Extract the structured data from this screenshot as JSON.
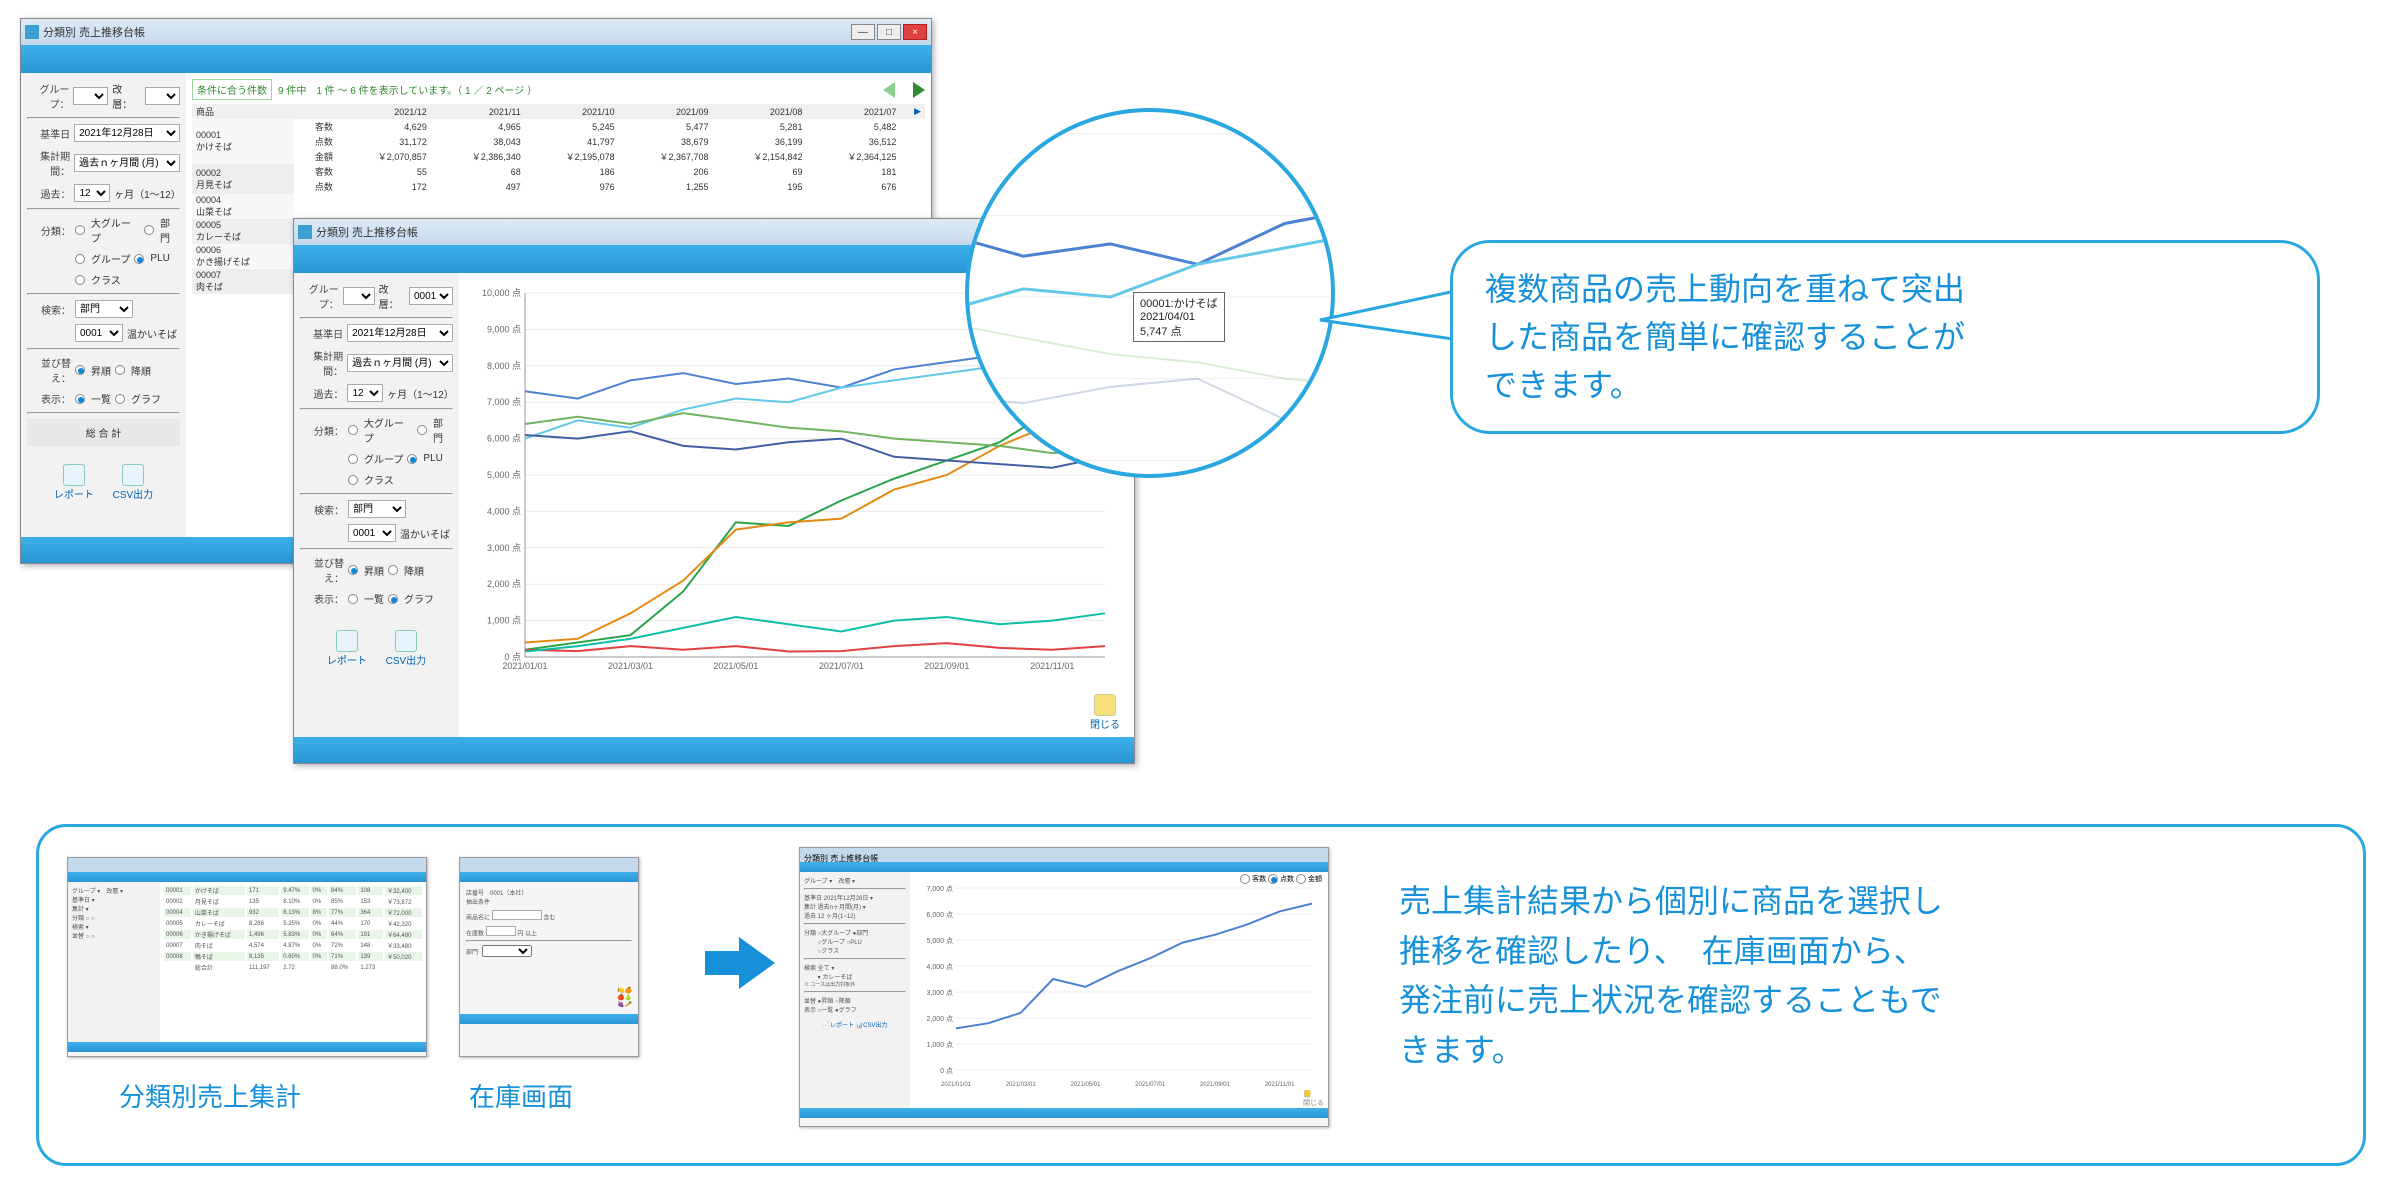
{
  "window_title": "分類別 売上推移台帳",
  "sidebar": {
    "group_lbl": "グループ：",
    "kaisou_lbl": "改層：",
    "kijun_lbl": "基準日",
    "kijun_val": "2021年12月28日",
    "syukei_lbl": "集計期間：",
    "syukei_val": "過去ｎヶ月間 (月)",
    "kako_lbl": "過去：",
    "kako_val": "12",
    "kako_unit": "ヶ月（1～12）",
    "bunrui_lbl": "分類：",
    "opt_large": "大グループ",
    "opt_bumon": "部門",
    "opt_group": "グループ",
    "opt_plu": "PLU",
    "opt_class": "クラス",
    "kensaku_lbl": "検索：",
    "kensaku_sel": "部門",
    "kensaku_code": "0001",
    "kensaku_name": "温かいそば",
    "sort_lbl": "並び替え：",
    "sort_asc": "昇順",
    "sort_desc": "降順",
    "hyoji_lbl": "表示：",
    "hyoji_list": "一覧",
    "hyoji_graph": "グラフ",
    "gokei": "総 合 計",
    "btn_report": "レポート",
    "btn_csv": "CSV出力",
    "btn_close": "閉じる"
  },
  "table": {
    "hint_prefix": "条件に合う件数",
    "hint_body": "9 件中　1 件 ～ 6 件を表示しています。（ 1 ／ 2 ページ ）",
    "head_item": "商品",
    "months": [
      "2021/12",
      "2021/11",
      "2021/10",
      "2021/09",
      "2021/08",
      "2021/07"
    ],
    "row_k": "客数",
    "row_t": "点数",
    "row_a": "金額",
    "rows": [
      {
        "code": "00001",
        "name": "かけそば",
        "k": [
          "4,629",
          "4,965",
          "5,245",
          "5,477",
          "5,281",
          "5,482"
        ],
        "t": [
          "31,172",
          "38,043",
          "41,797",
          "38,679",
          "36,199",
          "36,512"
        ],
        "a": [
          "￥2,070,857",
          "￥2,386,340",
          "￥2,195,078",
          "￥2,367,708",
          "￥2,154,842",
          "￥2,364,125"
        ]
      },
      {
        "code": "00002",
        "name": "月見そば",
        "k": [
          "55",
          "68",
          "186",
          "206",
          "69",
          "181"
        ],
        "t": [
          "172",
          "497",
          "976",
          "1,255",
          "195",
          "676"
        ]
      },
      {
        "code": "00004",
        "name": "山菜そば"
      },
      {
        "code": "00005",
        "name": "カレーそば"
      },
      {
        "code": "00006",
        "name": "かき揚げそば"
      },
      {
        "code": "00007",
        "name": "肉そば"
      }
    ]
  },
  "chart": {
    "ylim": [
      0,
      10000
    ],
    "ytick_step": 1000,
    "y_unit": "点",
    "x_labels": [
      "2021/01/01",
      "2021/03/01",
      "2021/05/01",
      "2021/07/01",
      "2021/09/01",
      "2021/11/01"
    ],
    "series_colors": [
      "#4d81d1",
      "#64c9e8",
      "#2aa44a",
      "#e38b14",
      "#415fa2",
      "#6fb35e",
      "#e04040",
      "#0cbfa6"
    ],
    "series": [
      [
        7300,
        7100,
        7600,
        7800,
        7500,
        7650,
        7400,
        7900,
        8100,
        8300,
        8500,
        8700
      ],
      [
        6000,
        6500,
        6300,
        6800,
        7100,
        7000,
        7400,
        7600,
        7800,
        8000,
        8200,
        9200
      ],
      [
        200,
        400,
        600,
        1800,
        3700,
        3600,
        4300,
        4900,
        5400,
        5900,
        6800,
        7600
      ],
      [
        400,
        500,
        1200,
        2100,
        3500,
        3700,
        3800,
        4600,
        5000,
        5800,
        6400,
        7200
      ],
      [
        6100,
        6000,
        6200,
        5800,
        5700,
        5900,
        6000,
        5500,
        5400,
        5300,
        5200,
        5500
      ],
      [
        6400,
        6600,
        6400,
        6700,
        6500,
        6300,
        6200,
        6000,
        5900,
        5800,
        5600,
        5700
      ],
      [
        200,
        160,
        300,
        200,
        300,
        150,
        160,
        300,
        380,
        250,
        200,
        300
      ],
      [
        150,
        300,
        500,
        800,
        1100,
        900,
        700,
        1000,
        1100,
        900,
        1000,
        1200
      ]
    ],
    "grid_color": "#e9e9e9",
    "axis_color": "#999",
    "bg": "#ffffff"
  },
  "tooltip": {
    "line1": "00001:かけそば",
    "line2": "2021/04/01",
    "line3": "5,747 点"
  },
  "speech1_l1": "複数商品の売上動向を重ねて突出",
  "speech1_l2": "した商品を簡単に確認することが",
  "speech1_l3": "できます。",
  "caption_bunrui": "分類別売上集計",
  "caption_zaiko": "在庫画面",
  "speech2_l1": "売上集計結果から個別に商品を選択し",
  "speech2_l2": "推移を確認したり、　在庫画面から、",
  "speech2_l3": "発注前に売上状況を確認することもで",
  "speech2_l4": "きます。",
  "mini_zaiko": {
    "lbl1": "店番号　0001（本社）",
    "lbl2": "抽出条件",
    "lbl3": "商品名に",
    "lbl4": "含む",
    "lbl5": "在庫数",
    "lbl6": "円",
    "lbl7": "以上"
  },
  "mini_chart3": {
    "radio_k": "客数",
    "radio_t": "点数",
    "radio_a": "金額",
    "ylim": [
      0,
      7000
    ],
    "ytick": 1000,
    "color": "#4d81d1",
    "series": [
      1600,
      1800,
      2200,
      3500,
      3200,
      3800,
      4300,
      4900,
      5200,
      5600,
      6100,
      6400
    ]
  }
}
